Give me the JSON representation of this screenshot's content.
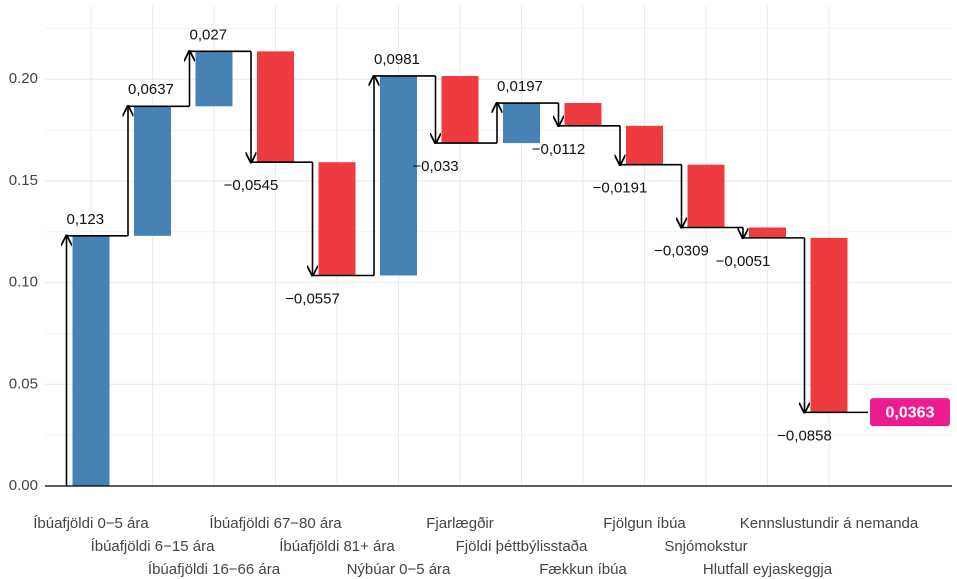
{
  "chart_data": {
    "type": "waterfall",
    "categories": [
      "Íbúafjöldi 0−5 ára",
      "Íbúafjöldi 6−15 ára",
      "Íbúafjöldi 16−66 ára",
      "Íbúafjöldi 67−80 ára",
      "Íbúafjöldi 81+ ára",
      "Nýbúar 0−5 ára",
      "Fjarlægðir",
      "Fjöldi þéttbýlisstaða",
      "Fækkun íbúa",
      "Fjölgun íbúa",
      "Snjómokstur",
      "Hlutfall eyjaskeggja",
      "Kennslustundir á nemanda"
    ],
    "values": [
      0.123,
      0.0637,
      0.027,
      -0.0545,
      -0.0557,
      0.0981,
      -0.033,
      0.0197,
      -0.0112,
      -0.0191,
      -0.0309,
      -0.0051,
      -0.0858
    ],
    "value_labels": [
      "0,123",
      "0,0637",
      "0,027",
      "−0,0545",
      "−0,0557",
      "0,0981",
      "−0,033",
      "0,0197",
      "−0,0112",
      "−0,0191",
      "−0,0309",
      "−0,0051",
      "−0,0858"
    ],
    "total": 0.0363,
    "total_label": "0,0363",
    "colors": {
      "increase": "#4682b4",
      "decrease": "#ee3b3f",
      "total": "#ec1c8e"
    },
    "ylim": [
      0,
      0.236
    ],
    "yticks": [
      {
        "value": 0,
        "label": "0.00"
      },
      {
        "value": 0.05,
        "label": "0.05"
      },
      {
        "value": 0.1,
        "label": "0.10"
      },
      {
        "value": 0.15,
        "label": "0.15"
      },
      {
        "value": 0.2,
        "label": "0.20"
      }
    ],
    "grid": true
  }
}
